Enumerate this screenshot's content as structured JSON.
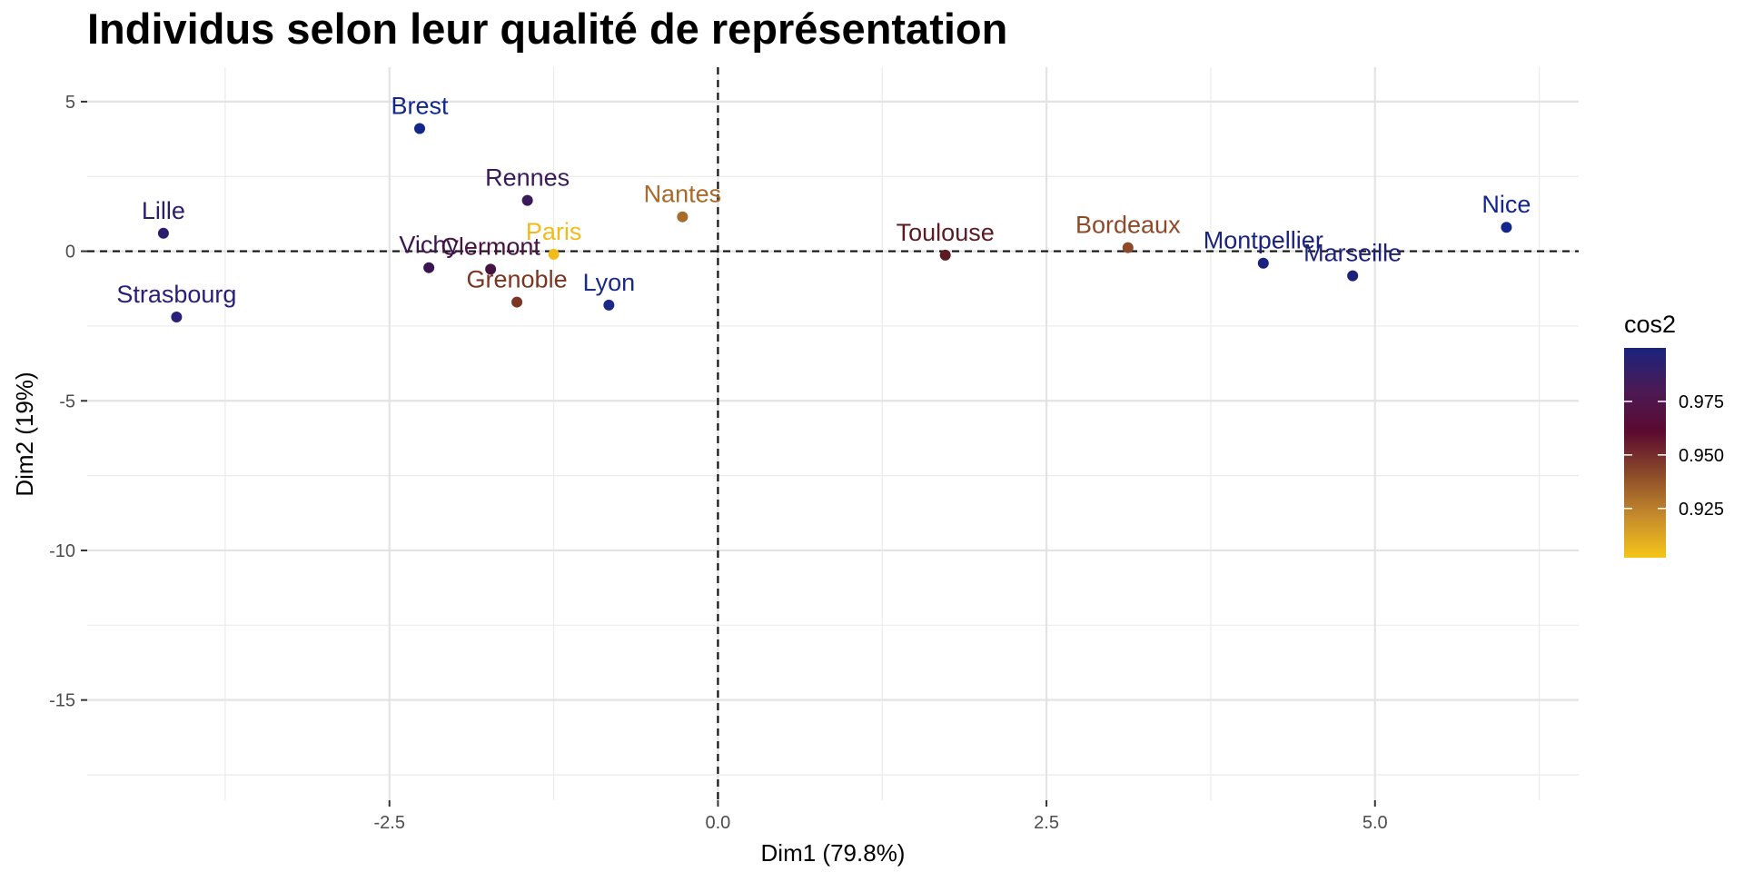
{
  "chart_data": {
    "type": "scatter",
    "title": "Individus selon leur qualité de représentation",
    "xlabel": "Dim1 (79.8%)",
    "ylabel": "Dim2 (19%)",
    "xlim": [
      -4.8,
      6.55
    ],
    "ylim": [
      -18.35,
      6.15
    ],
    "x_ticks": [
      -2.5,
      0.0,
      2.5,
      5.0
    ],
    "x_tick_labels": [
      "-2.5",
      "0.0",
      "2.5",
      "5.0"
    ],
    "y_ticks": [
      5,
      0,
      -5,
      -10,
      -15
    ],
    "y_tick_labels": [
      "5",
      "0",
      "-5",
      "-10",
      "-15"
    ],
    "x_minor": [
      -3.75,
      -1.25,
      1.25,
      3.75,
      6.25
    ],
    "y_minor": [
      2.5,
      -2.5,
      -7.5,
      -12.5,
      -17.5
    ],
    "grid": true,
    "reference_lines": {
      "x": 0,
      "y": 0,
      "style": "dashed"
    },
    "legend": {
      "title": "cos2",
      "position": "right",
      "range": [
        0.902,
        1.0
      ],
      "ticks": [
        0.975,
        0.95,
        0.925
      ],
      "tick_labels": [
        "0.975",
        "0.950",
        "0.925"
      ],
      "colors_high_to_low": [
        "#1a237e",
        "#4a1a55",
        "#5c0a30",
        "#8b4a2a",
        "#c58a2c",
        "#f5c518"
      ]
    },
    "points": [
      {
        "label": "Brest",
        "x": -2.27,
        "y": 4.1,
        "cos2": 0.999,
        "color": "#13268c"
      },
      {
        "label": "Rennes",
        "x": -1.45,
        "y": 1.7,
        "cos2": 0.98,
        "color": "#3b1a5a"
      },
      {
        "label": "Nantes",
        "x": -0.27,
        "y": 1.15,
        "cos2": 0.938,
        "color": "#a86a2a"
      },
      {
        "label": "Lille",
        "x": -4.22,
        "y": 0.6,
        "cos2": 0.99,
        "color": "#2a1f6e"
      },
      {
        "label": "Vichy",
        "x": -2.2,
        "y": -0.55,
        "cos2": 0.978,
        "color": "#3b1552"
      },
      {
        "label": "Clermont",
        "x": -1.73,
        "y": -0.6,
        "cos2": 0.976,
        "color": "#451440"
      },
      {
        "label": "Paris",
        "x": -1.25,
        "y": -0.1,
        "cos2": 0.905,
        "color": "#f2bb1a"
      },
      {
        "label": "Grenoble",
        "x": -1.53,
        "y": -1.7,
        "cos2": 0.955,
        "color": "#7a3622"
      },
      {
        "label": "Lyon",
        "x": -0.83,
        "y": -1.8,
        "cos2": 0.997,
        "color": "#1a2a85"
      },
      {
        "label": "Strasbourg",
        "x": -4.12,
        "y": -2.2,
        "cos2": 0.993,
        "color": "#28207a"
      },
      {
        "label": "Toulouse",
        "x": 1.73,
        "y": -0.13,
        "cos2": 0.965,
        "color": "#5c1a22"
      },
      {
        "label": "Bordeaux",
        "x": 3.12,
        "y": 0.12,
        "cos2": 0.95,
        "color": "#8e4a28"
      },
      {
        "label": "Montpellier",
        "x": 4.15,
        "y": -0.4,
        "cos2": 0.998,
        "color": "#1a2380"
      },
      {
        "label": "Marseille",
        "x": 4.83,
        "y": -0.82,
        "cos2": 0.996,
        "color": "#1e2278"
      },
      {
        "label": "Nice",
        "x": 6.0,
        "y": 0.8,
        "cos2": 0.999,
        "color": "#13268c"
      }
    ]
  }
}
